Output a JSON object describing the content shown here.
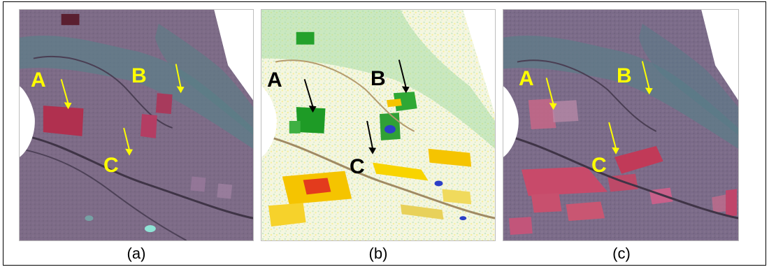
{
  "panels": [
    {
      "caption": "(a)",
      "labels": [
        "A",
        "B",
        "C"
      ],
      "label_color": "#ffff00",
      "arrow_color": "#ffff00"
    },
    {
      "caption": "(b)",
      "labels": [
        "A",
        "B",
        "C"
      ],
      "label_color": "#000000",
      "arrow_color": "#000000"
    },
    {
      "caption": "(c)",
      "labels": [
        "A",
        "B",
        "C"
      ],
      "label_color": "#ffff00",
      "arrow_color": "#ffff00"
    }
  ]
}
